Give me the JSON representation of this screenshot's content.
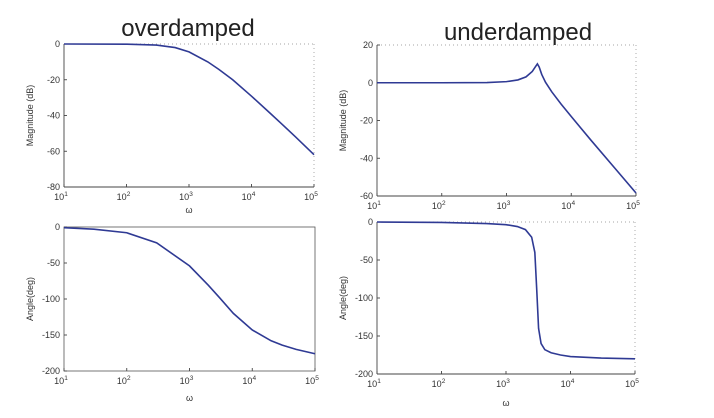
{
  "titles": {
    "left": "overdamped",
    "right": "underdamped"
  },
  "colors": {
    "line": "#2f3a94",
    "axis": "#444444",
    "highlight": "#8fb3e6"
  },
  "chart_data": [
    {
      "id": "overdamped-magnitude",
      "type": "line",
      "title": "",
      "xlabel": "ω",
      "ylabel": "Magnitude (dB)",
      "xscale": "log",
      "xlim": [
        10,
        100000
      ],
      "ylim": [
        -80,
        0
      ],
      "xticks": [
        10,
        100,
        1000,
        10000,
        100000
      ],
      "yticks": [
        0,
        -20,
        -40,
        -60,
        -80
      ],
      "boxed": false,
      "series": [
        {
          "x": [
            10,
            100,
            300,
            600,
            1000,
            2000,
            3000,
            5000,
            10000,
            20000,
            30000,
            50000,
            100000
          ],
          "y": [
            0,
            -0.1,
            -0.6,
            -2.0,
            -4.4,
            -10.0,
            -14.2,
            -20.0,
            -29.2,
            -38.8,
            -44.5,
            -51.8,
            -61.9
          ]
        }
      ]
    },
    {
      "id": "underdamped-magnitude",
      "type": "line",
      "title": "",
      "xlabel": "",
      "ylabel": "Magnitude (dB)",
      "xscale": "log",
      "xlim": [
        10,
        100000
      ],
      "ylim": [
        -60,
        20
      ],
      "xticks": [
        10,
        100,
        1000,
        10000,
        100000
      ],
      "yticks": [
        20,
        0,
        -20,
        -40,
        -60
      ],
      "boxed": false,
      "series": [
        {
          "x": [
            10,
            100,
            500,
            1000,
            1500,
            2000,
            2500,
            2800,
            3000,
            3200,
            3500,
            4000,
            5000,
            7000,
            10000,
            20000,
            50000,
            100000
          ],
          "y": [
            0,
            0,
            0.1,
            0.6,
            1.5,
            3.1,
            6.0,
            8.5,
            10.0,
            8.3,
            4.4,
            0.3,
            -4.8,
            -11.4,
            -17.9,
            -30.3,
            -46.3,
            -58.4
          ]
        }
      ]
    },
    {
      "id": "overdamped-phase",
      "type": "line",
      "title": "",
      "xlabel": "ω",
      "ylabel": "Angle(deg)",
      "xscale": "log",
      "xlim": [
        10,
        100000
      ],
      "ylim": [
        -200,
        0
      ],
      "xticks": [
        10,
        100,
        1000,
        10000,
        100000
      ],
      "yticks": [
        0,
        -50,
        -100,
        -150,
        -200
      ],
      "boxed": true,
      "series": [
        {
          "x": [
            10,
            30,
            100,
            300,
            1000,
            2000,
            3000,
            5000,
            10000,
            20000,
            30000,
            50000,
            100000
          ],
          "y": [
            -1,
            -3,
            -8,
            -22,
            -54,
            -81,
            -98,
            -120,
            -143,
            -158,
            -164,
            -170,
            -176
          ]
        }
      ]
    },
    {
      "id": "underdamped-phase",
      "type": "line",
      "title": "",
      "xlabel": "ω",
      "ylabel": "Angle(deg)",
      "xscale": "log",
      "xlim": [
        10,
        100000
      ],
      "ylim": [
        -200,
        0
      ],
      "xticks": [
        10,
        100,
        1000,
        10000,
        100000
      ],
      "yticks": [
        0,
        -50,
        -100,
        -150,
        -200
      ],
      "boxed": false,
      "series": [
        {
          "x": [
            10,
            100,
            500,
            1000,
            1500,
            2000,
            2500,
            2800,
            3000,
            3200,
            3500,
            4000,
            5000,
            7000,
            10000,
            30000,
            100000
          ],
          "y": [
            0,
            -0.6,
            -2,
            -3.5,
            -6,
            -10,
            -20,
            -40,
            -90,
            -140,
            -160,
            -168,
            -172,
            -175,
            -177,
            -179,
            -180
          ]
        }
      ]
    }
  ]
}
